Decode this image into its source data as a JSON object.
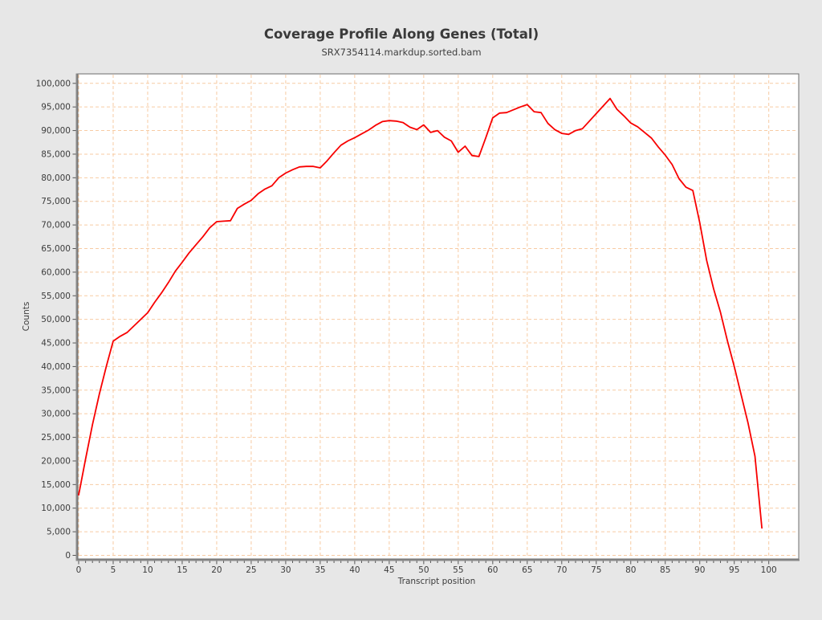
{
  "figure": {
    "title": "Coverage Profile Along Genes (Total)",
    "subtitle": "SRX7354114.markdup.sorted.bam"
  },
  "colors": {
    "page_bg": "#e7e7e7",
    "plot_bg": "#ffffff",
    "grid": "#f7cba3",
    "border": "#6c6c6c",
    "spine": "#8a8a8a",
    "tick": "#555555",
    "tick_label": "#3c3c3c",
    "title": "#3a3a3a",
    "line": "#f80000"
  },
  "chart_data": {
    "type": "line",
    "title": "Coverage Profile Along Genes (Total)",
    "subtitle": "SRX7354114.markdup.sorted.bam",
    "xlabel": "Transcript position",
    "ylabel": "Counts",
    "xlim": [
      0,
      100
    ],
    "ylim": [
      0,
      100000
    ],
    "grid": "dashed-both-axes",
    "legend": "none",
    "x_ticks": [
      0,
      5,
      10,
      15,
      20,
      25,
      30,
      35,
      40,
      45,
      50,
      55,
      60,
      65,
      70,
      75,
      80,
      85,
      90,
      95,
      100
    ],
    "y_ticks": [
      0,
      5000,
      10000,
      15000,
      20000,
      25000,
      30000,
      35000,
      40000,
      45000,
      50000,
      55000,
      60000,
      65000,
      70000,
      75000,
      80000,
      85000,
      90000,
      95000,
      100000
    ],
    "x_minor_tick_step": 1,
    "x": [
      0,
      1,
      2,
      3,
      4,
      5,
      6,
      7,
      8,
      9,
      10,
      11,
      12,
      13,
      14,
      15,
      16,
      17,
      18,
      19,
      20,
      21,
      22,
      23,
      24,
      25,
      26,
      27,
      28,
      29,
      30,
      31,
      32,
      33,
      34,
      35,
      36,
      37,
      38,
      39,
      40,
      41,
      42,
      43,
      44,
      45,
      46,
      47,
      48,
      49,
      50,
      51,
      52,
      53,
      54,
      55,
      56,
      57,
      58,
      59,
      60,
      61,
      62,
      63,
      64,
      65,
      66,
      67,
      68,
      69,
      70,
      71,
      72,
      73,
      74,
      75,
      76,
      77,
      78,
      79,
      80,
      81,
      82,
      83,
      84,
      85,
      86,
      87,
      88,
      89,
      90,
      91,
      92,
      93,
      94,
      95,
      96,
      97,
      98,
      99
    ],
    "series": [
      {
        "name": "SRX7354114.markdup.sorted.bam",
        "color": "#f80000",
        "values": [
          12800,
          20400,
          27700,
          34200,
          40000,
          45400,
          46400,
          47200,
          48600,
          50000,
          51400,
          53600,
          55600,
          57800,
          60200,
          62100,
          64100,
          65800,
          67500,
          69400,
          70700,
          70800,
          70900,
          73500,
          74400,
          75200,
          76600,
          77600,
          78300,
          80000,
          81000,
          81700,
          82300,
          82400,
          82400,
          82100,
          83600,
          85300,
          86900,
          87800,
          88500,
          89300,
          90100,
          91100,
          91900,
          92100,
          92000,
          91700,
          90700,
          90200,
          91200,
          89600,
          90000,
          88600,
          87800,
          85400,
          86700,
          84700,
          84500,
          88500,
          92700,
          93700,
          93800,
          94400,
          95000,
          95500,
          94000,
          93800,
          91500,
          90200,
          89400,
          89200,
          90000,
          90400,
          92000,
          93600,
          95200,
          96800,
          94500,
          93100,
          91600,
          90800,
          89600,
          88400,
          86500,
          84800,
          82800,
          79800,
          78000,
          77300,
          70500,
          62500,
          56500,
          51500,
          45500,
          40000,
          34000,
          28000,
          21000,
          5800
        ]
      }
    ]
  }
}
